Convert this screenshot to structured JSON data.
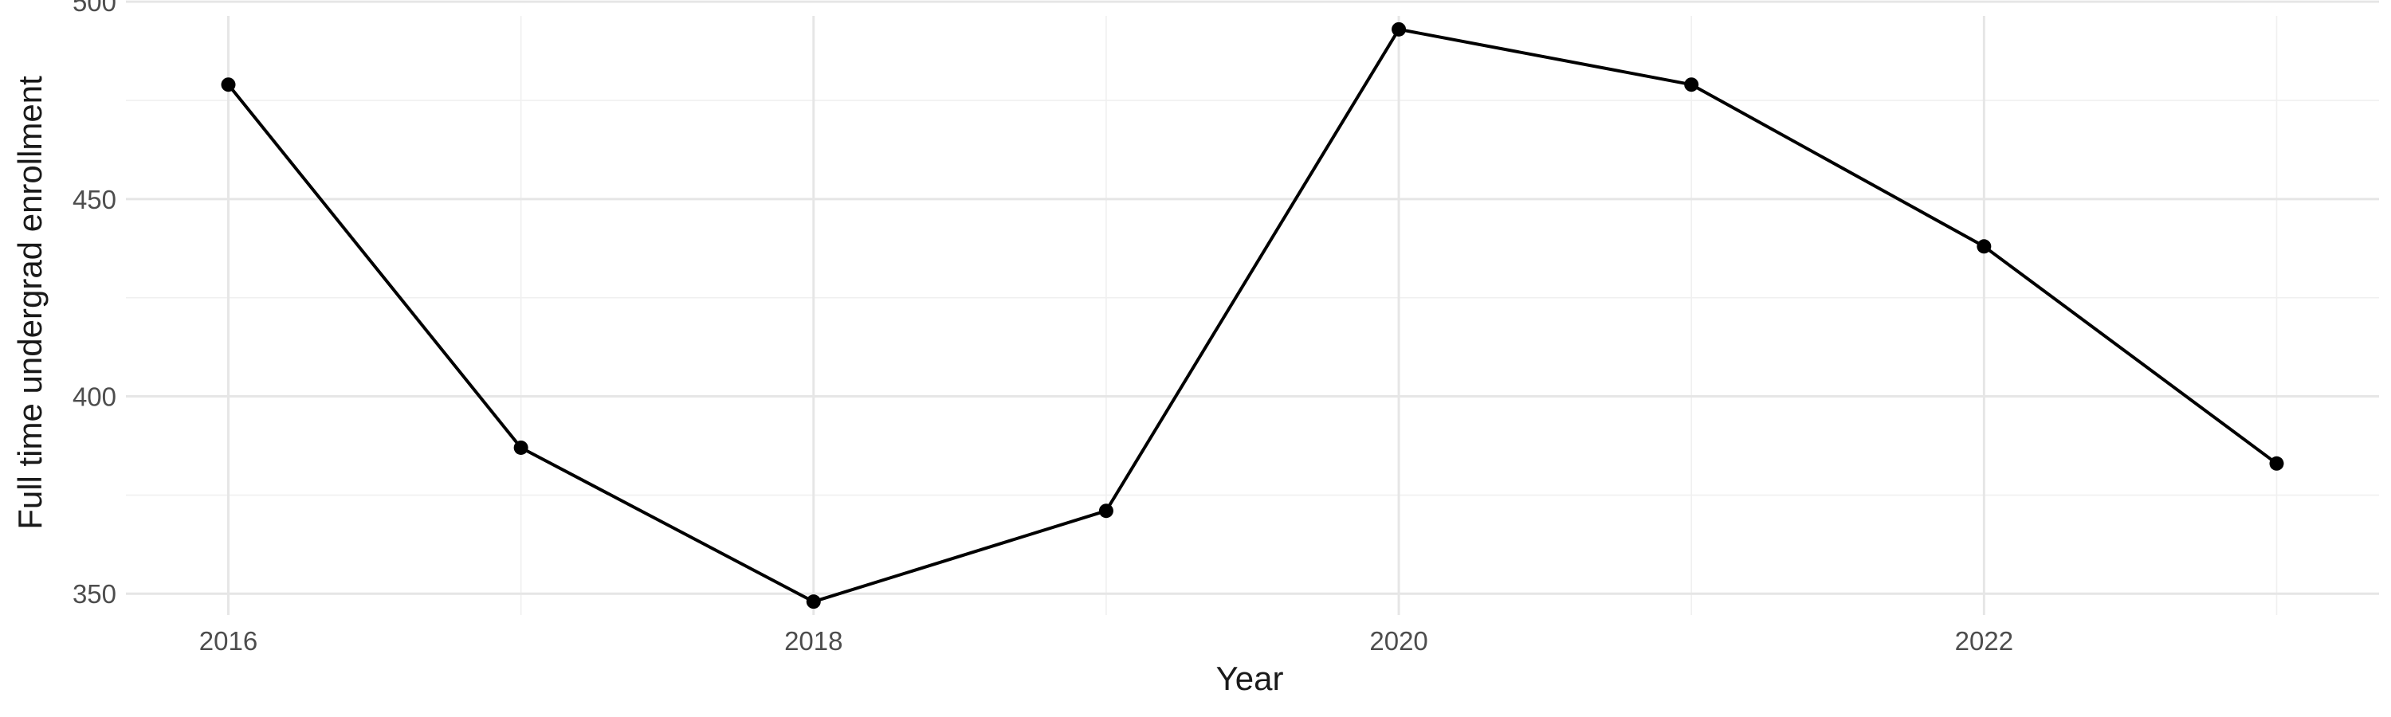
{
  "chart_data": {
    "type": "line",
    "title": "",
    "xlabel": "Year",
    "ylabel": "Full time undergrad enrollment",
    "x": [
      2016,
      2017,
      2018,
      2019,
      2020,
      2021,
      2022,
      2023
    ],
    "series": [
      {
        "values": [
          479,
          387,
          348,
          371,
          493,
          479,
          438,
          383
        ]
      }
    ],
    "xlim": [
      2015.65,
      2023.35
    ],
    "ylim": [
      344.6,
      496.4
    ],
    "x_major_ticks": [
      2016,
      2018,
      2020,
      2022
    ],
    "x_minor_ticks": [
      2017,
      2019,
      2021,
      2023
    ],
    "y_major_ticks": [
      350,
      400,
      450,
      500
    ],
    "y_minor_ticks": [
      375,
      425,
      475
    ],
    "grid": true,
    "legend": "none",
    "colors": {
      "line": "#000000",
      "point": "#000000",
      "grid_major": "#e6e6e6",
      "grid_minor": "#f0f0f0"
    }
  }
}
